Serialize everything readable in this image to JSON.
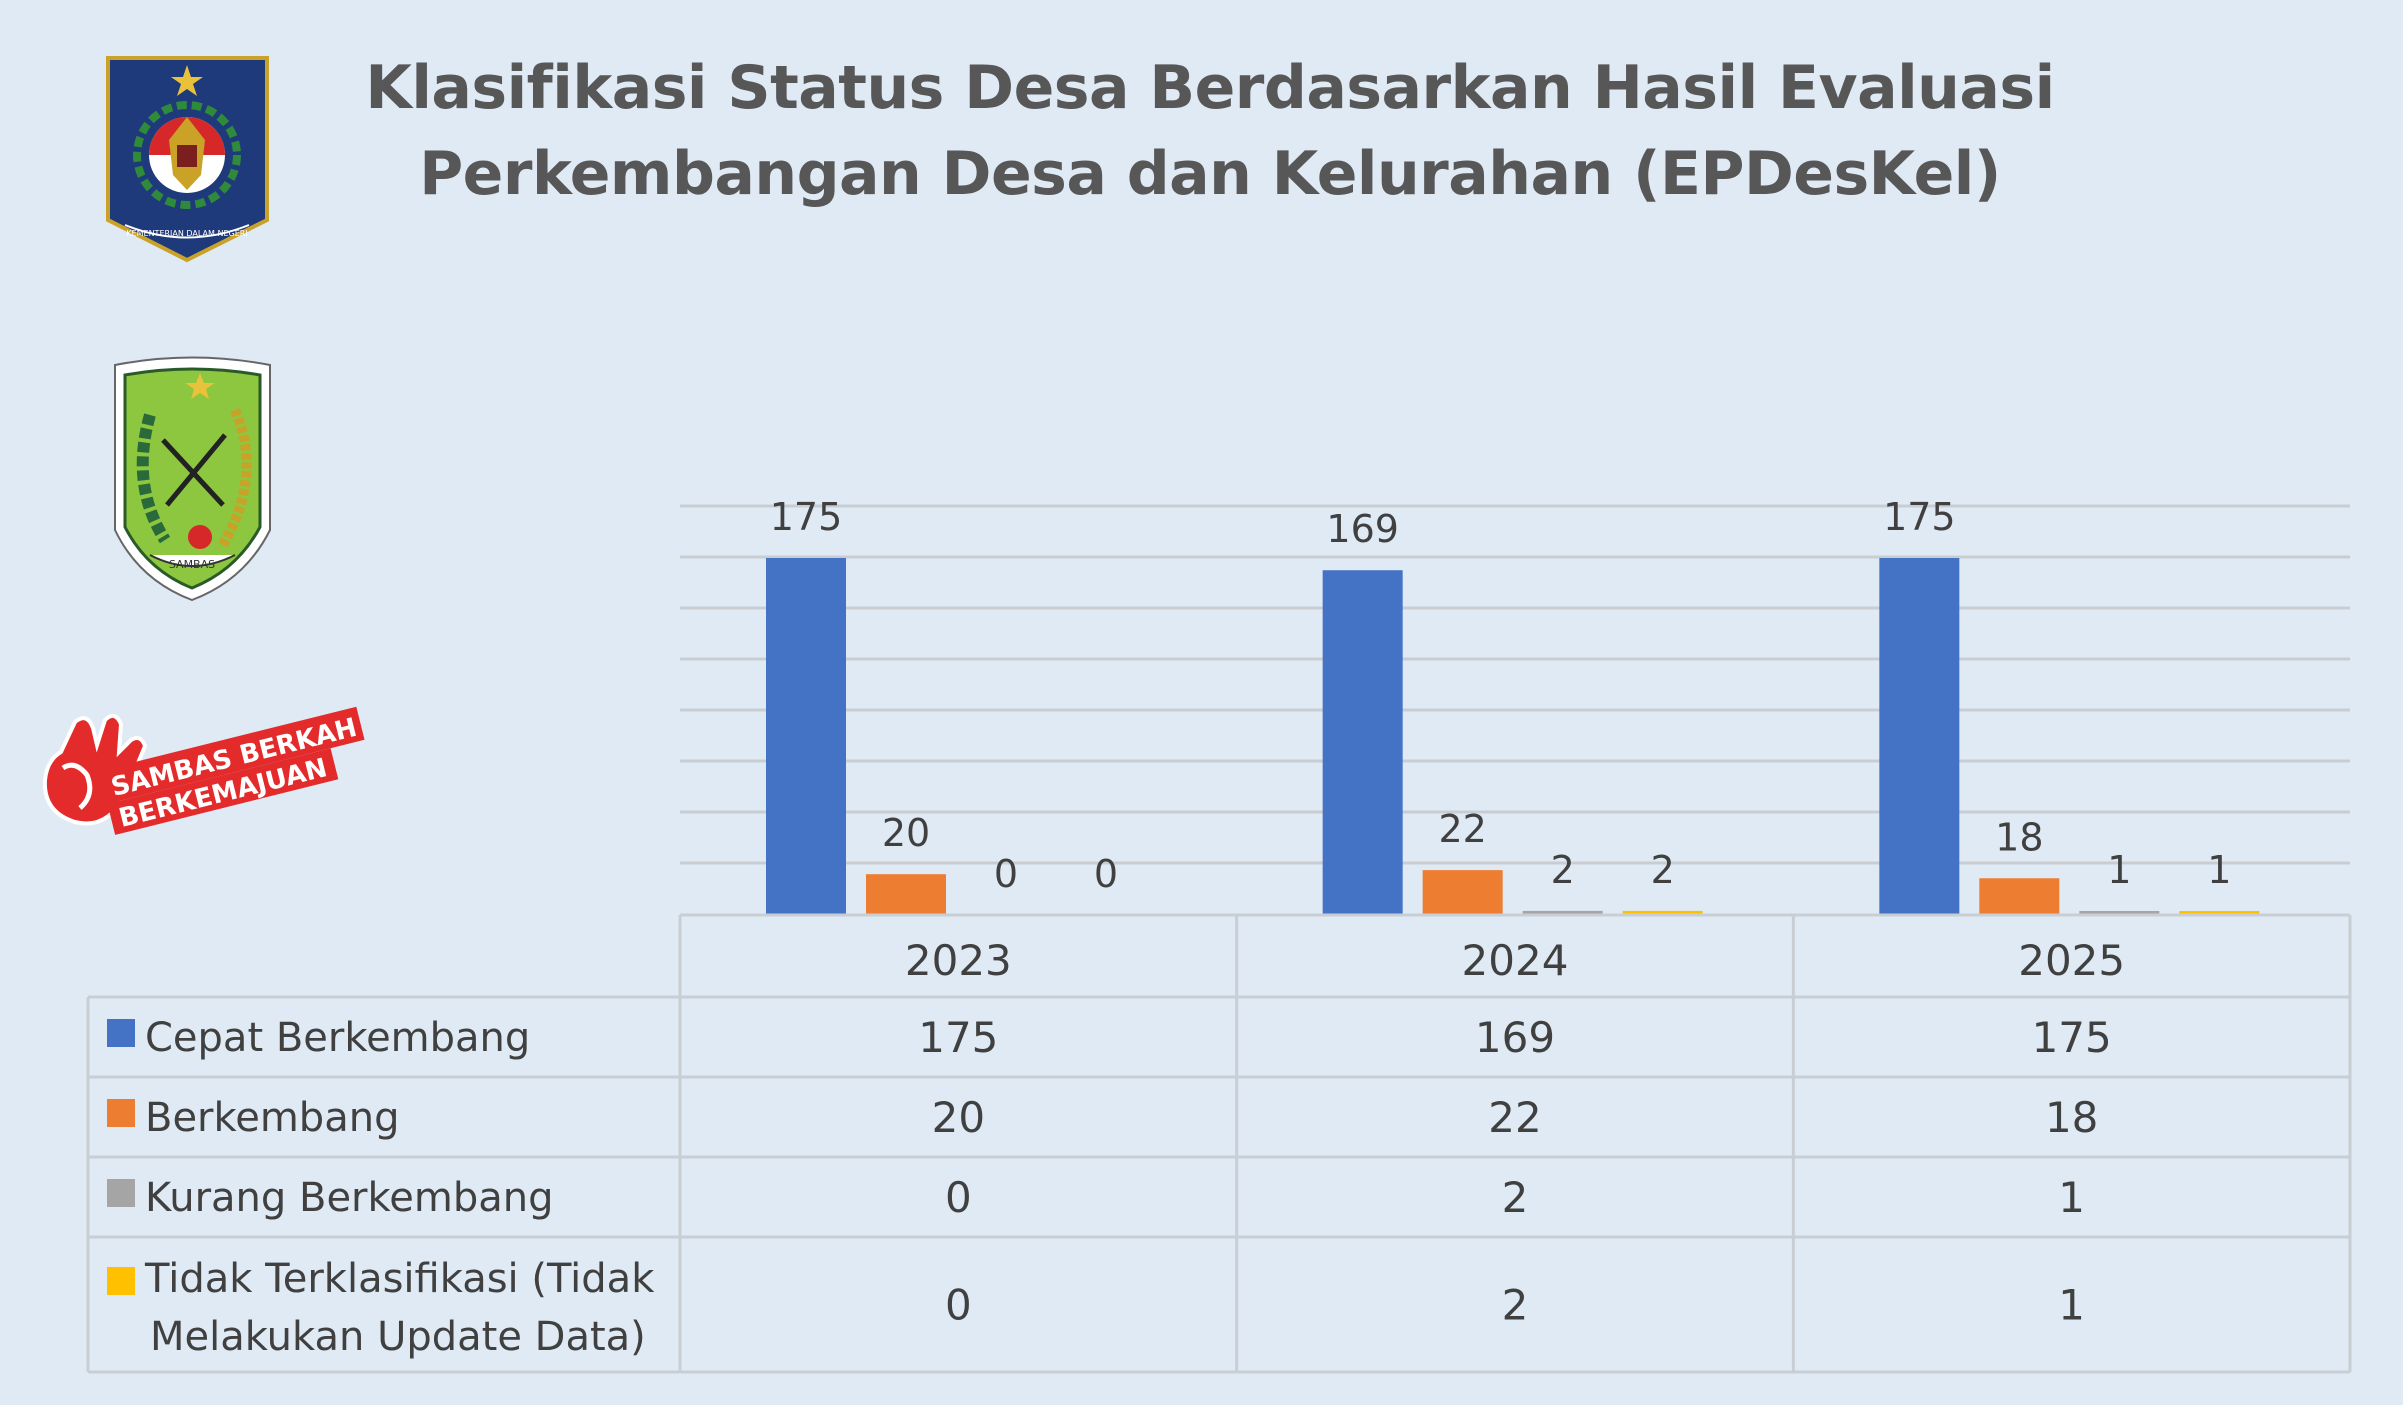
{
  "title": {
    "line1": "Klasifikasi Status Desa Berdasarkan Hasil Evaluasi",
    "line2": "Perkembangan Desa dan Kelurahan (EPDesKel)"
  },
  "logos": {
    "kemendagri_text": "KEMENTERIAN DALAM NEGERI",
    "sambas_text": "SAMBAS",
    "berkah_line1": "SAMBAS BERKAH",
    "berkah_line2": "BERKEMAJUAN"
  },
  "colors": {
    "background": "#dfeaf5",
    "grid": "#c9cdd2",
    "table_border": "#c9ced4",
    "text": "#404040"
  },
  "chart_data": {
    "type": "bar",
    "categories": [
      "2023",
      "2024",
      "2025"
    ],
    "series": [
      {
        "name": "Cepat Berkembang",
        "color": "#4472c4",
        "values": [
          175,
          169,
          175
        ]
      },
      {
        "name": "Berkembang",
        "color": "#ed7d31",
        "values": [
          20,
          22,
          18
        ]
      },
      {
        "name": "Kurang Berkembang",
        "color": "#a5a5a5",
        "values": [
          0,
          2,
          1
        ]
      },
      {
        "name": "Tidak Terklasifikasi (Tidak Melakukan Update Data)",
        "color": "#ffc000",
        "values": [
          0,
          2,
          1
        ]
      }
    ],
    "ylim": [
      0,
      200
    ],
    "grid": true,
    "legend": "data table below chart"
  }
}
